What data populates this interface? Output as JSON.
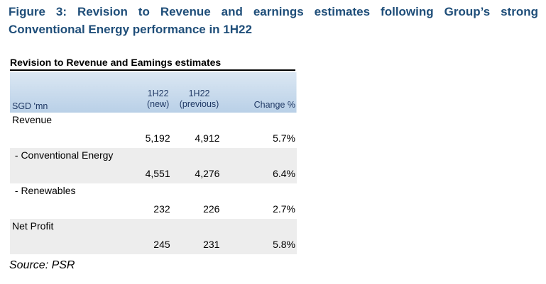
{
  "figure": {
    "title": "Figure 3: Revision to Revenue and earnings estimates following Group’s strong Conventional Energy performance in 1H22"
  },
  "table": {
    "heading": "Revision to Revenue and Eamings estimates",
    "header": {
      "label": "SGD 'mn",
      "col_new_line1": "1H22",
      "col_new_line2": "(new)",
      "col_prev_line1": "1H22",
      "col_prev_line2": "(previous)",
      "col_change": "Change %"
    },
    "rows": [
      {
        "label": "Revenue",
        "new": "5,192",
        "previous": "4,912",
        "change": "5.7%"
      },
      {
        "label": " - Conventional Energy",
        "new": "4,551",
        "previous": "4,276",
        "change": "6.4%"
      },
      {
        "label": " - Renewables",
        "new": "232",
        "previous": "226",
        "change": "2.7%"
      },
      {
        "label": "Net Profit",
        "new": "245",
        "previous": "231",
        "change": "5.8%"
      }
    ]
  },
  "source": "Source: PSR"
}
